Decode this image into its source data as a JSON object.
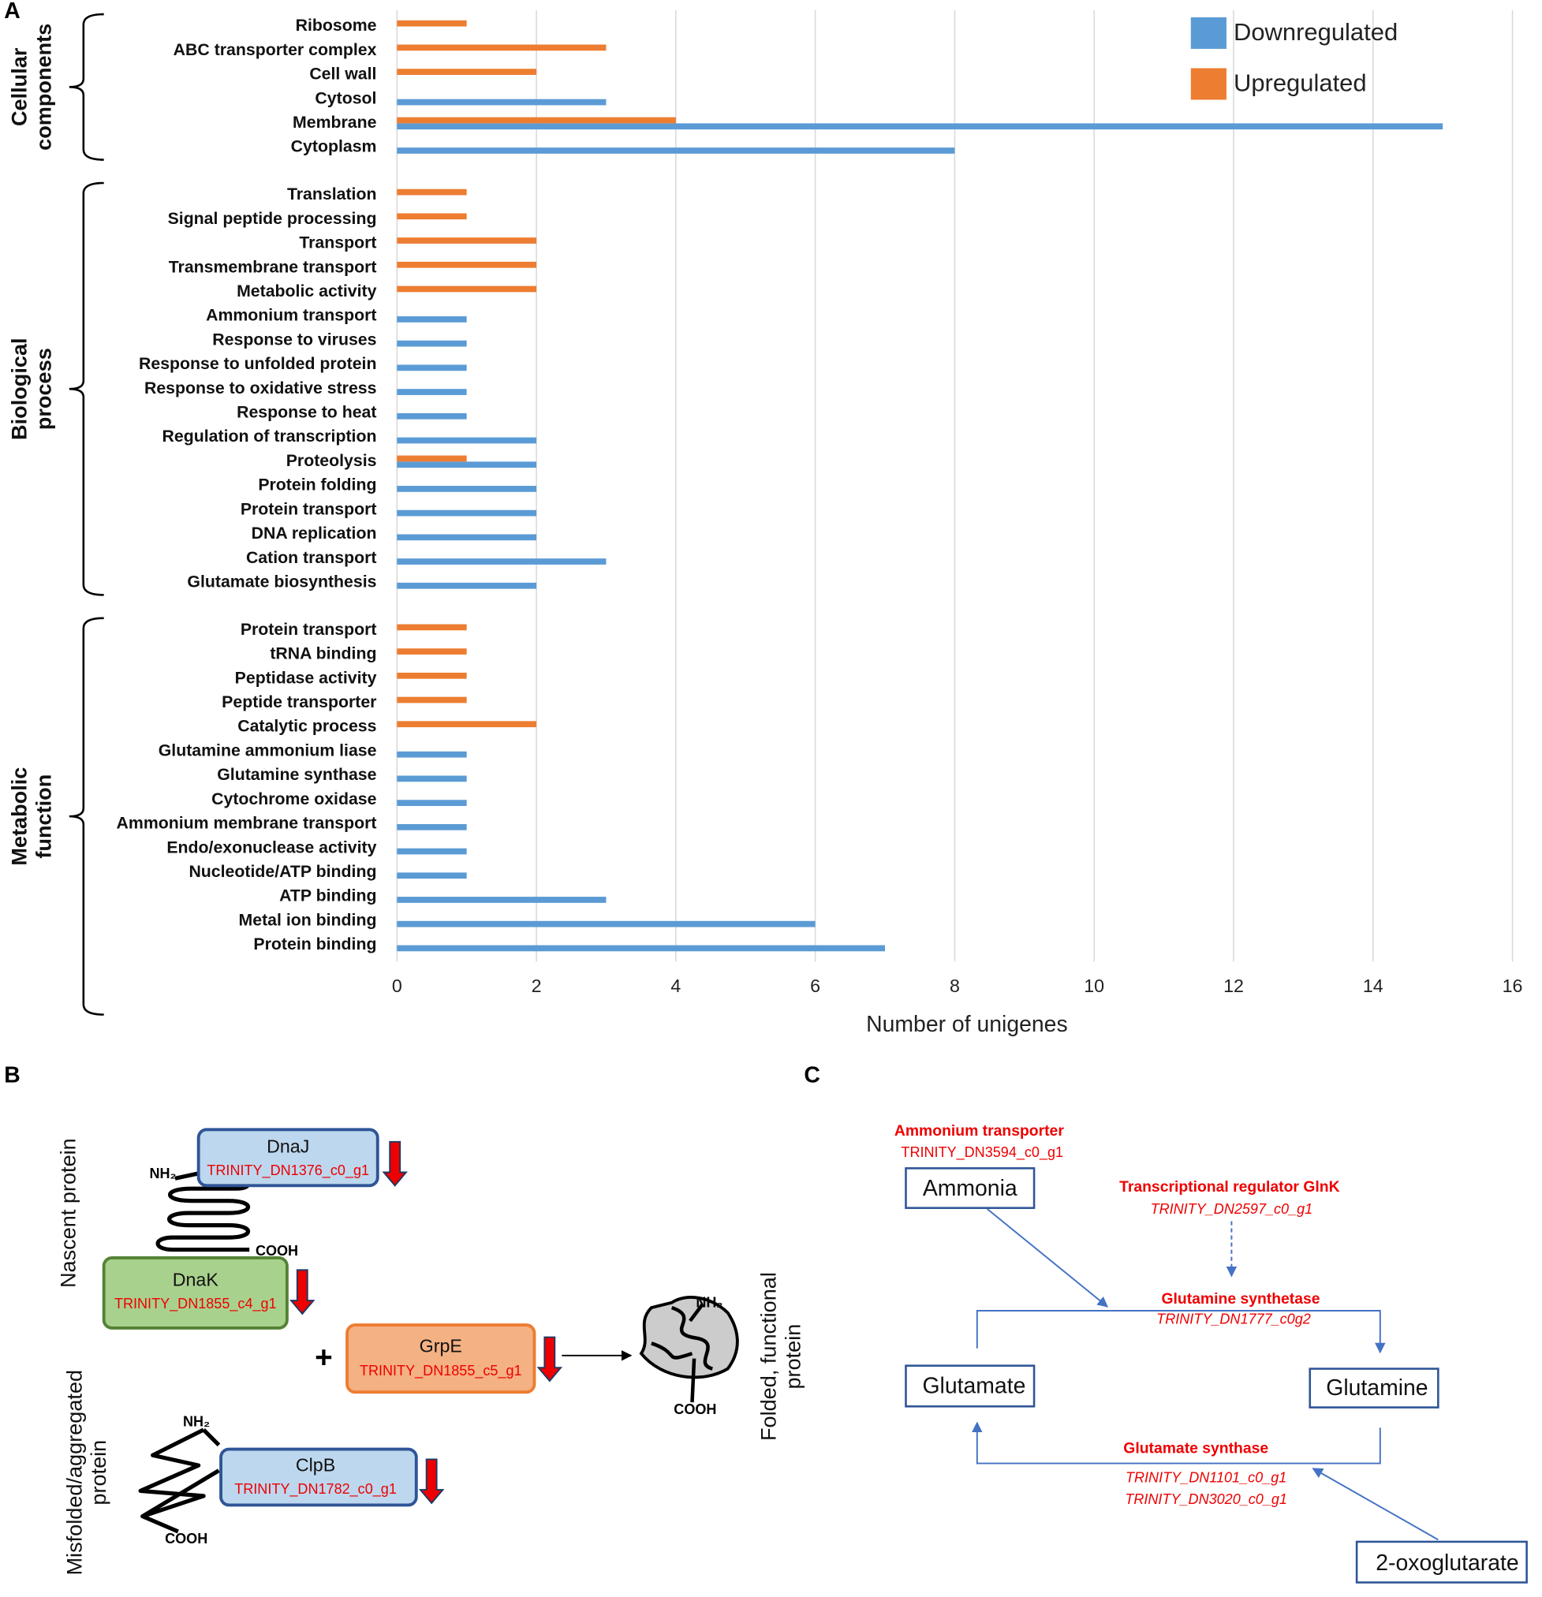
{
  "chart_data": {
    "type": "bar",
    "panel": "A",
    "x_label": "Number of unigenes",
    "xlim": [
      0,
      16
    ],
    "xticks": [
      0,
      2,
      4,
      6,
      8,
      10,
      12,
      14,
      16
    ],
    "grid": true,
    "legend": "top-right",
    "series": [
      {
        "name": "Downregulated",
        "color": "#5b9bd5"
      },
      {
        "name": "Upregulated",
        "color": "#ed7d31"
      }
    ],
    "groups": [
      {
        "name": "Cellular components",
        "categories": [
          "Ribosome",
          "ABC transporter complex",
          "Cell wall",
          "Cytosol",
          "Membrane",
          "Cytoplasm"
        ],
        "series": [
          {
            "values": [
              null,
              null,
              null,
              3,
              15,
              8
            ]
          },
          {
            "values": [
              1,
              3,
              2,
              null,
              4,
              null
            ]
          }
        ]
      },
      {
        "name": "Biological process",
        "categories": [
          "Translation",
          "Signal peptide processing",
          "Transport",
          "Transmembrane transport",
          "Metabolic activity",
          "Ammonium transport",
          "Response to viruses",
          "Response to unfolded protein",
          "Response to oxidative stress",
          "Response to heat",
          "Regulation of transcription",
          "Proteolysis",
          "Protein folding",
          "Protein transport",
          "DNA replication",
          "Cation transport",
          "Glutamate biosynthesis"
        ],
        "series": [
          {
            "values": [
              null,
              null,
              null,
              null,
              null,
              1,
              1,
              1,
              1,
              1,
              2,
              2,
              2,
              2,
              2,
              3,
              2
            ]
          },
          {
            "values": [
              1,
              1,
              2,
              2,
              2,
              null,
              null,
              null,
              null,
              null,
              null,
              1,
              null,
              null,
              null,
              null,
              null
            ]
          }
        ]
      },
      {
        "name": "Metabolic function",
        "categories": [
          "Protein transport",
          "tRNA binding",
          "Peptidase activity",
          "Peptide transporter",
          "Catalytic process",
          "Glutamine ammonium liase",
          "Glutamine synthase",
          "Cytochrome oxidase",
          "Ammonium membrane transport",
          "Endo/exonuclease activity",
          "Nucleotide/ATP binding",
          "ATP binding",
          "Metal ion binding",
          "Protein binding"
        ],
        "series": [
          {
            "values": [
              null,
              null,
              null,
              null,
              null,
              1,
              1,
              1,
              1,
              1,
              1,
              3,
              6,
              7
            ]
          },
          {
            "values": [
              1,
              1,
              1,
              1,
              2,
              null,
              null,
              null,
              null,
              null,
              null,
              null,
              null,
              null
            ]
          }
        ]
      }
    ]
  },
  "panel_b": {
    "label": "B",
    "nascent": "Nascent protein",
    "misfolded": "Misfolded/aggregated protein",
    "folded": "Folded, functional protein",
    "plus": "+",
    "proteins": [
      {
        "name": "DnaJ",
        "gene": "TRINITY_DN1376_c0_g1"
      },
      {
        "name": "DnaK",
        "gene": "TRINITY_DN1855_c4_g1"
      },
      {
        "name": "GrpE",
        "gene": "TRINITY_DN1855_c5_g1"
      },
      {
        "name": "ClpB",
        "gene": "TRINITY_DN1782_c0_g1"
      }
    ],
    "termini": [
      "NH₂",
      "COOH",
      "NH₂",
      "COOH",
      "NH₂",
      "COOH"
    ]
  },
  "panel_c": {
    "label": "C",
    "nodes": {
      "ammonia": "Ammonia",
      "glutamate": "Glutamate",
      "glutamine": "Glutamine",
      "oxoglutarate": "2-oxoglutarate"
    },
    "enzymes": [
      {
        "name": "Ammonium transporter",
        "genes": [
          "TRINITY_DN3594_c0_g1"
        ]
      },
      {
        "name": "Transcriptional regulator GlnK",
        "genes": [
          "TRINITY_DN2597_c0_g1"
        ]
      },
      {
        "name": "Glutamine synthetase",
        "genes": [
          "TRINITY_DN1777_c0g2"
        ]
      },
      {
        "name": "Glutamate synthase",
        "genes": [
          "TRINITY_DN1101_c0_g1",
          "TRINITY_DN3020_c0_g1"
        ]
      }
    ]
  }
}
